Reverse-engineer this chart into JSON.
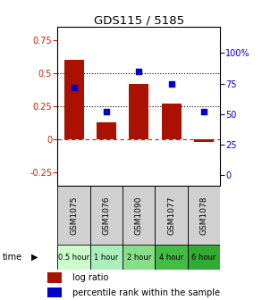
{
  "title": "GDS115 / 5185",
  "categories": [
    "GSM1075",
    "GSM1076",
    "GSM1090",
    "GSM1077",
    "GSM1078"
  ],
  "time_labels": [
    "0.5 hour",
    "1 hour",
    "2 hour",
    "4 hour",
    "6 hour"
  ],
  "time_colors": [
    "#ccffcc",
    "#aaeebb",
    "#88dd88",
    "#44bb44",
    "#33aa33"
  ],
  "log_ratios": [
    0.6,
    0.13,
    0.42,
    0.27,
    -0.02
  ],
  "percentile_ranks": [
    72,
    52,
    85,
    75,
    52
  ],
  "bar_color": "#aa1100",
  "dot_color": "#0000cc",
  "left_ylim": [
    -0.35,
    0.85
  ],
  "right_ylim": [
    -8.75,
    121.25
  ],
  "left_yticks": [
    -0.25,
    0,
    0.25,
    0.5,
    0.75
  ],
  "right_yticks": [
    0,
    25,
    50,
    75,
    100
  ],
  "right_yticklabels": [
    "0",
    "25",
    "50",
    "75",
    "100%"
  ],
  "hline_dotted": [
    0.25,
    0.5
  ],
  "hline_dashed_red": 0.0,
  "legend_ratio_label": "log ratio",
  "legend_pct_label": "percentile rank within the sample"
}
